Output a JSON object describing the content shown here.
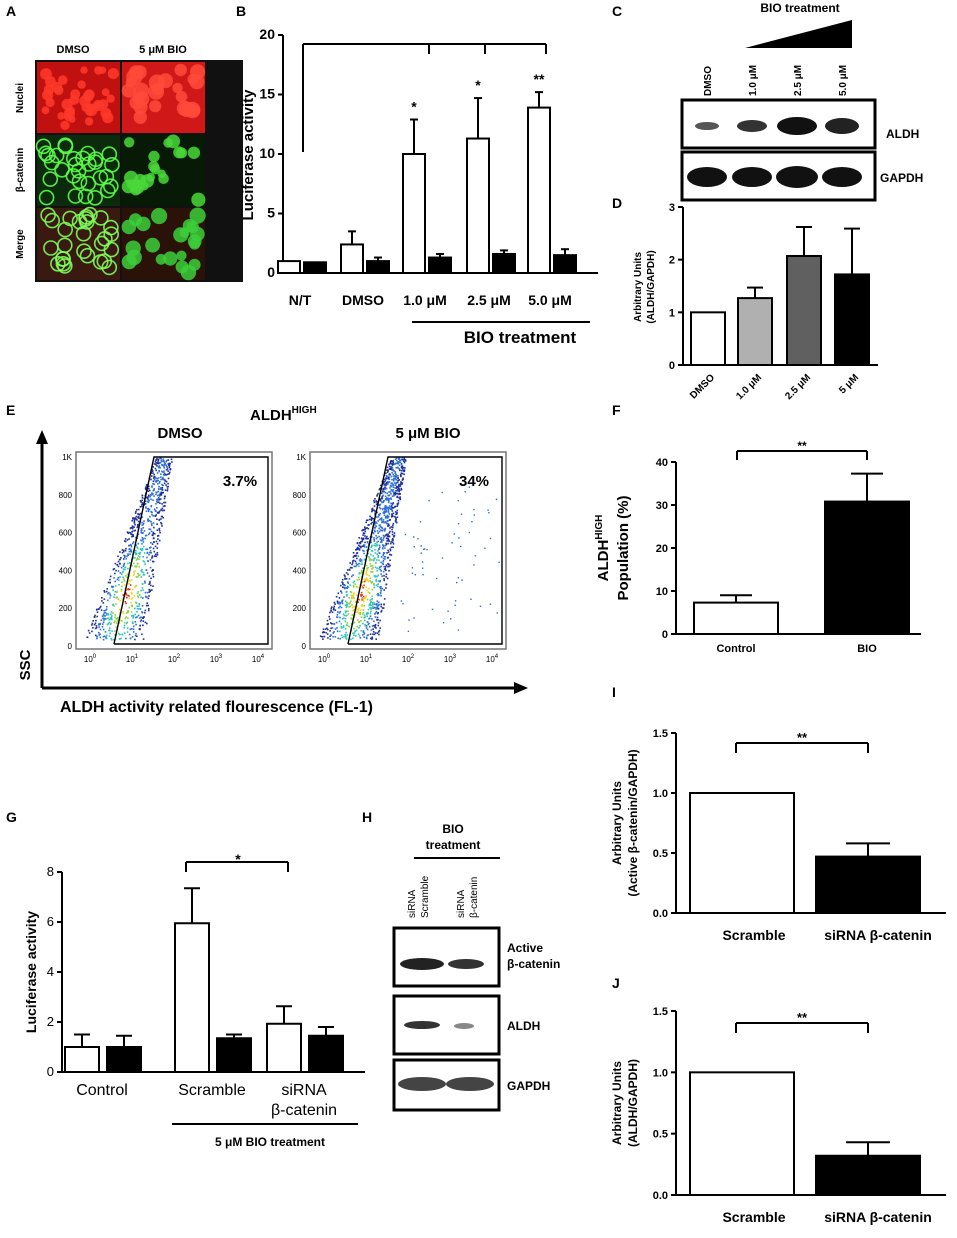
{
  "panels": {
    "A": {
      "label": "A",
      "col1": "DMSO",
      "col2": "5 μM BIO",
      "rows": [
        "Nuclei",
        "β-catenin",
        "Merge"
      ]
    },
    "B": {
      "label": "B"
    },
    "C": {
      "label": "C",
      "header": "BIO treatment",
      "lanes": [
        "DMSO",
        "1.0 μM",
        "2.5 μM",
        "5.0 μM"
      ],
      "bands": [
        "ALDH",
        "GAPDH"
      ]
    },
    "D": {
      "label": "D"
    },
    "E": {
      "label": "E",
      "title_main": "ALDH",
      "title_sup": "HIGH",
      "plot1": "DMSO",
      "plot2": "5 μM BIO",
      "pct1": "3.7%",
      "pct2": "34%",
      "yaxis": "SSC",
      "xaxis": "ALDH  activity related flourescence (FL-1)",
      "yticks": [
        "1K",
        "800",
        "600",
        "400",
        "200",
        "0"
      ],
      "xticks": [
        "10",
        "10",
        "10",
        "10",
        "10"
      ],
      "xexp": [
        "0",
        "1",
        "2",
        "3",
        "4"
      ]
    },
    "F": {
      "label": "F"
    },
    "G": {
      "label": "G"
    },
    "H": {
      "label": "H",
      "header": "BIO\ntreatment",
      "header1": "BIO",
      "header2": "treatment",
      "lanes": [
        [
          "siRNA",
          "Scramble"
        ],
        [
          "siRNA",
          "β-catenin"
        ]
      ],
      "bands": [
        [
          "Active",
          "β-catenin"
        ],
        [
          "ALDH"
        ],
        [
          "GAPDH"
        ]
      ]
    },
    "I": {
      "label": "I"
    },
    "J": {
      "label": "J"
    }
  },
  "chart_data": [
    {
      "panel": "B",
      "type": "bar",
      "ylabel": "Luciferase activity",
      "ylim": [
        0,
        20
      ],
      "yticks": [
        0,
        5,
        10,
        15,
        20
      ],
      "categories": [
        "N/T",
        "DMSO",
        "1.0 μM",
        "2.5 μM",
        "5.0 μM"
      ],
      "series": [
        {
          "color": "#ffffff",
          "values": [
            1.0,
            2.4,
            10.0,
            11.3,
            13.9
          ],
          "errors": [
            0,
            1.1,
            2.9,
            3.4,
            1.3
          ]
        },
        {
          "color": "#000000",
          "values": [
            0.9,
            1.0,
            1.3,
            1.6,
            1.5
          ],
          "errors": [
            0,
            0.3,
            0.3,
            0.3,
            0.5
          ]
        }
      ],
      "sig": [
        "",
        "",
        "*",
        "*",
        "**"
      ],
      "group_label": "BIO treatment"
    },
    {
      "panel": "D",
      "type": "bar",
      "ylabel": "Arbitrary Units\n(ALDH/GAPDH)",
      "ylabel1": "Arbitrary Units",
      "ylabel2": "(ALDH/GAPDH)",
      "ylim": [
        0,
        3
      ],
      "yticks": [
        0,
        1,
        2,
        3
      ],
      "categories": [
        "DMSO",
        "1.0 μM",
        "2.5 μM",
        "5 μM"
      ],
      "values": [
        1.0,
        1.27,
        2.07,
        1.72
      ],
      "errors": [
        0,
        0.2,
        0.55,
        0.87
      ],
      "colors": [
        "#ffffff",
        "#b0b0b0",
        "#606060",
        "#000000"
      ]
    },
    {
      "panel": "F",
      "type": "bar",
      "ylabel_top": "ALDH",
      "ylabel_sup": "HIGH",
      "ylabel_bottom": "Population (%)",
      "ylim": [
        0,
        40
      ],
      "yticks": [
        0,
        10,
        20,
        30,
        40
      ],
      "categories": [
        "Control",
        "BIO"
      ],
      "values": [
        7.3,
        30.8
      ],
      "errors": [
        1.7,
        6.5
      ],
      "colors": [
        "#ffffff",
        "#000000"
      ],
      "sig": "**"
    },
    {
      "panel": "G",
      "type": "bar",
      "ylabel": "Luciferase activity",
      "ylim": [
        0,
        8
      ],
      "yticks": [
        0,
        2,
        4,
        6,
        8
      ],
      "categories": [
        "Control",
        "Scramble",
        "siRNA\nβ-catenin"
      ],
      "cat_line1": [
        "Control",
        "Scramble",
        "siRNA"
      ],
      "cat_line2": [
        "",
        "",
        "β-catenin"
      ],
      "series": [
        {
          "color": "#ffffff",
          "values": [
            1.0,
            5.95,
            1.93
          ],
          "errors": [
            0.5,
            1.4,
            0.7
          ]
        },
        {
          "color": "#000000",
          "values": [
            1.0,
            1.35,
            1.45
          ],
          "errors": [
            0.45,
            0.15,
            0.35
          ]
        }
      ],
      "sig": "*",
      "group_label": "5 μM BIO treatment"
    },
    {
      "panel": "I",
      "type": "bar",
      "ylabel": "Arbitrary Units\n(Active β-catenin/GAPDH)",
      "ylabel1": "Arbitrary Units",
      "ylabel2": "(Active β-catenin/GAPDH)",
      "ylim": [
        0,
        1.5
      ],
      "yticks": [
        "0.0",
        "0.5",
        "1.0",
        "1.5"
      ],
      "categories": [
        "Scramble",
        "siRNA  β-catenin"
      ],
      "values": [
        1.0,
        0.47
      ],
      "errors": [
        0,
        0.11
      ],
      "colors": [
        "#ffffff",
        "#000000"
      ],
      "sig": "**"
    },
    {
      "panel": "J",
      "type": "bar",
      "ylabel": "Arbitrary Units\n(ALDH/GAPDH)",
      "ylabel1": "Arbitrary Units",
      "ylabel2": "(ALDH/GAPDH)",
      "ylim": [
        0,
        1.5
      ],
      "yticks": [
        "0.0",
        "0.5",
        "1.0",
        "1.5"
      ],
      "categories": [
        "Scramble",
        "siRNA  β-catenin"
      ],
      "values": [
        1.0,
        0.32
      ],
      "errors": [
        0,
        0.11
      ],
      "colors": [
        "#ffffff",
        "#000000"
      ],
      "sig": "**"
    }
  ]
}
